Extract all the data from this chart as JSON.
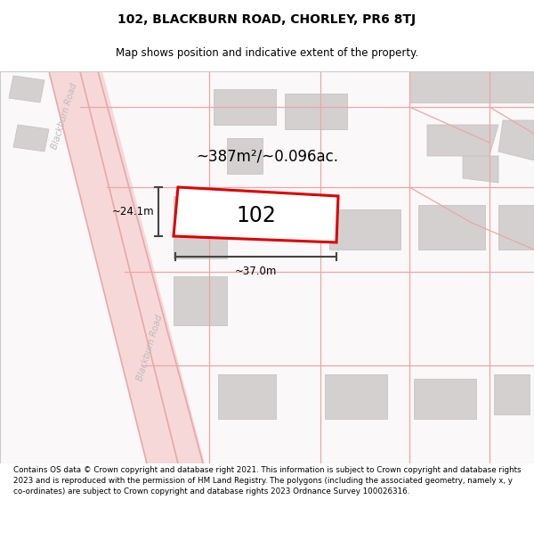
{
  "title": "102, BLACKBURN ROAD, CHORLEY, PR6 8TJ",
  "subtitle": "Map shows position and indicative extent of the property.",
  "footer": "Contains OS data © Crown copyright and database right 2021. This information is subject to Crown copyright and database rights 2023 and is reproduced with the permission of HM Land Registry. The polygons (including the associated geometry, namely x, y co-ordinates) are subject to Crown copyright and database rights 2023 Ordnance Survey 100026316.",
  "bg_color": "#faf8f8",
  "road_fill": "#f7d8d8",
  "road_line": "#e8a8a8",
  "building_fill": "#d4d0d0",
  "building_edge": "#c8c4c4",
  "highlight_color": "#dd0000",
  "dim_color": "#444444",
  "label_color": "#bbbbbb",
  "area_text": "~387m²/~0.096ac.",
  "label_102": "102",
  "dim_width": "~37.0m",
  "dim_height": "~24.1m",
  "title_fontsize": 10,
  "subtitle_fontsize": 8.5,
  "footer_fontsize": 6.3
}
